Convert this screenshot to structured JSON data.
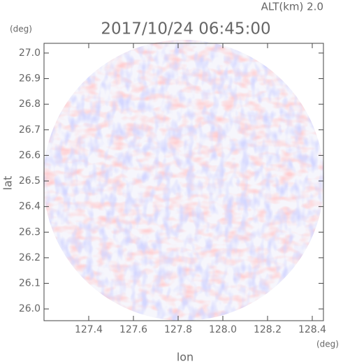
{
  "chart_data": {
    "type": "radar-field",
    "title": "2017/10/24 06:45:00",
    "subtitle": "ALT(km) 2.0",
    "x_label": "lon",
    "y_label": "lat",
    "x_unit": "(deg)",
    "y_unit": "(deg)",
    "xlim": [
      127.2,
      128.45
    ],
    "ylim": [
      25.954,
      27.038
    ],
    "xticks": [
      127.4,
      127.6,
      127.8,
      {
        "value": 128.0,
        "label": "128.0"
      },
      128.2,
      128.4
    ],
    "yticks": [
      {
        "value": 26.0,
        "label": "26.0"
      },
      26.1,
      26.2,
      26.3,
      26.4,
      26.5,
      26.6,
      26.7,
      26.8,
      26.9,
      {
        "value": 27.0,
        "label": "27.0"
      }
    ]
  }
}
